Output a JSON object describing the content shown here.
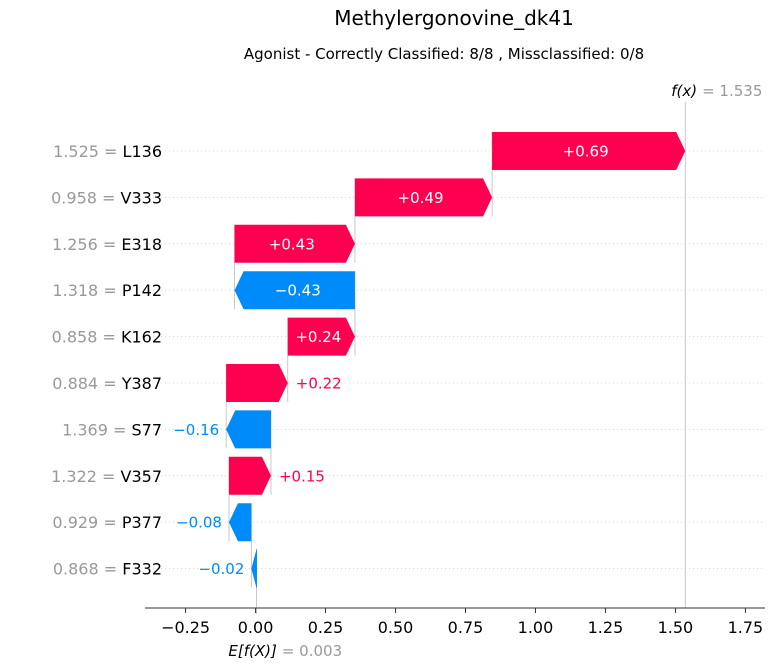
{
  "chart_data": {
    "type": "bar",
    "subtype": "waterfall",
    "title": "Methylergonovine_dk41",
    "subtitle": "Agonist - Correctly Classified: 8/8 , Missclassified: 0/8",
    "base_value": 0.003,
    "base_label": "E[f(X)]",
    "base_value_text": "= 0.003",
    "output_value": 1.535,
    "output_label": "f(x)",
    "output_value_text": "= 1.535",
    "features": [
      {
        "value": "1.525",
        "name": "L136",
        "contribution": 0.69,
        "label": "+0.69"
      },
      {
        "value": "0.958",
        "name": "V333",
        "contribution": 0.49,
        "label": "+0.49"
      },
      {
        "value": "1.256",
        "name": "E318",
        "contribution": 0.43,
        "label": "+0.43"
      },
      {
        "value": "1.318",
        "name": "P142",
        "contribution": -0.43,
        "label": "−0.43"
      },
      {
        "value": "0.858",
        "name": "K162",
        "contribution": 0.24,
        "label": "+0.24"
      },
      {
        "value": "0.884",
        "name": "Y387",
        "contribution": 0.22,
        "label": "+0.22"
      },
      {
        "value": "1.369",
        "name": "S77",
        "contribution": -0.16,
        "label": "−0.16"
      },
      {
        "value": "1.322",
        "name": "V357",
        "contribution": 0.15,
        "label": "+0.15"
      },
      {
        "value": "0.929",
        "name": "P377",
        "contribution": -0.08,
        "label": "−0.08"
      },
      {
        "value": "0.868",
        "name": "F332",
        "contribution": -0.02,
        "label": "−0.02"
      }
    ],
    "x_ticks": [
      -0.25,
      0.0,
      0.25,
      0.5,
      0.75,
      1.0,
      1.25,
      1.5,
      1.75
    ],
    "x_tick_labels": [
      "−0.25",
      "0.00",
      "0.25",
      "0.50",
      "0.75",
      "1.00",
      "1.25",
      "1.50",
      "1.75"
    ],
    "xlim": [
      -0.395,
      1.82
    ],
    "colors": {
      "positive": "#ff0051",
      "negative": "#008bfb",
      "muted": "#999999"
    }
  }
}
